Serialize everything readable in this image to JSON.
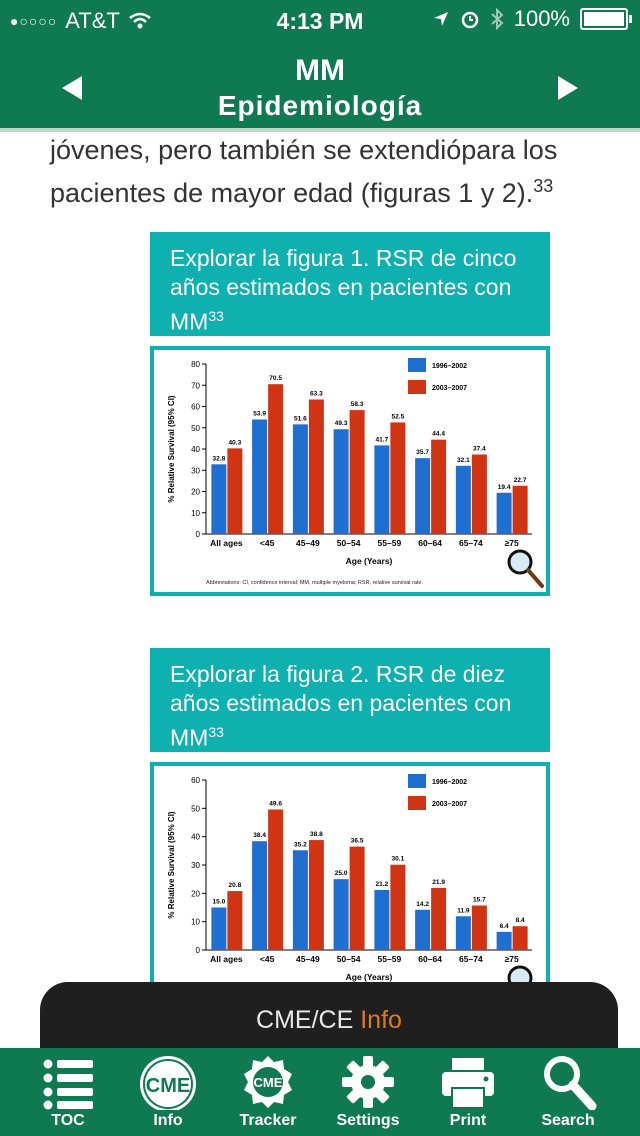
{
  "status": {
    "carrier": "AT&T",
    "time": "4:13 PM",
    "battery": "100%"
  },
  "nav": {
    "title": "MM",
    "subtitle": "Epidemiología"
  },
  "content": {
    "paragraph_line1": "jóvenes, pero también se extendiópara los",
    "paragraph_line2": "pacientes de mayor edad (figuras 1 y 2).",
    "paragraph_ref": "33"
  },
  "figure1": {
    "title": "Explorar la figura 1. RSR de cinco años estimados en pacientes con MM",
    "ref": "33"
  },
  "figure2": {
    "title": "Explorar la figura 2. RSR de diez años estimados en pacientes con MM",
    "ref": "33"
  },
  "chart_data": [
    {
      "type": "bar",
      "title": "RSR de cinco años estimados",
      "xlabel": "Age (Years)",
      "ylabel": "% Relative Survival (95% CI)",
      "ylim": [
        0,
        80
      ],
      "yticks": [
        0,
        10,
        20,
        30,
        40,
        50,
        60,
        70,
        80
      ],
      "categories": [
        "All ages",
        "<45",
        "45–49",
        "50–54",
        "55–59",
        "60–64",
        "65–74",
        "≥75"
      ],
      "series": [
        {
          "name": "1996–2002",
          "color": "#1f6fd0",
          "values": [
            32.8,
            53.9,
            51.6,
            49.3,
            41.7,
            35.7,
            32.1,
            19.4
          ]
        },
        {
          "name": "2003–2007",
          "color": "#d03412",
          "values": [
            40.3,
            70.5,
            63.3,
            58.3,
            52.5,
            44.4,
            37.4,
            22.7
          ]
        }
      ],
      "footnote": "Abbreviations: CI, confidence interval; MM, multiple myeloma; RSR, relative survival rate."
    },
    {
      "type": "bar",
      "title": "RSR de diez años estimados",
      "xlabel": "Age (Years)",
      "ylabel": "% Relative Survival (95% CI)",
      "ylim": [
        0,
        60
      ],
      "yticks": [
        0,
        10,
        20,
        30,
        40,
        50,
        60
      ],
      "categories": [
        "All ages",
        "<45",
        "45–49",
        "50–54",
        "55–59",
        "60–64",
        "65–74",
        "≥75"
      ],
      "series": [
        {
          "name": "1996–2002",
          "color": "#1f6fd0",
          "values": [
            15.0,
            38.4,
            35.2,
            25.0,
            21.2,
            14.2,
            11.9,
            6.4
          ]
        },
        {
          "name": "2003–2007",
          "color": "#d03412",
          "values": [
            20.8,
            49.6,
            38.8,
            36.5,
            30.1,
            21.9,
            15.7,
            8.4
          ]
        }
      ]
    }
  ],
  "drawer": {
    "label_main": "CME/CE",
    "label_accent": "Info"
  },
  "tabs": [
    {
      "label": "TOC",
      "icon": "list-icon"
    },
    {
      "label": "Info",
      "icon": "cme-icon"
    },
    {
      "label": "Tracker",
      "icon": "cme-badge-icon"
    },
    {
      "label": "Settings",
      "icon": "gear-icon"
    },
    {
      "label": "Print",
      "icon": "printer-icon"
    },
    {
      "label": "Search",
      "icon": "search-icon"
    }
  ]
}
